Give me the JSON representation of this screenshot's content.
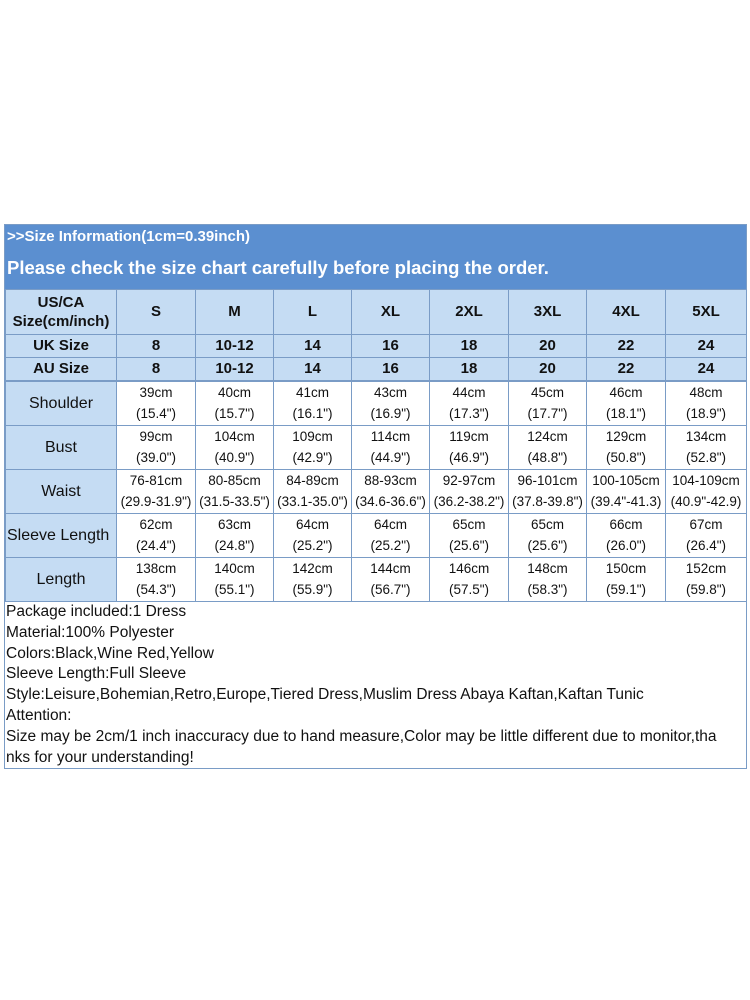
{
  "banner": {
    "line1": ">>Size Information(1cm=0.39inch)",
    "line2": "Please check the size chart carefully before placing the order."
  },
  "header": {
    "corner_label_line1": "US/CA",
    "corner_label_line2": "Size(cm/inch)",
    "sizes": [
      "S",
      "M",
      "L",
      "XL",
      "2XL",
      "3XL",
      "4XL",
      "5XL"
    ]
  },
  "uk": {
    "label": "UK Size",
    "values": [
      "8",
      "10-12",
      "14",
      "16",
      "18",
      "20",
      "22",
      "24"
    ]
  },
  "au": {
    "label": "AU Size",
    "values": [
      "8",
      "10-12",
      "14",
      "16",
      "18",
      "20",
      "22",
      "24"
    ]
  },
  "rows": [
    {
      "label": "Shoulder",
      "cm": [
        "39cm",
        "40cm",
        "41cm",
        "43cm",
        "44cm",
        "45cm",
        "46cm",
        "48cm"
      ],
      "inch": [
        "(15.4\")",
        "(15.7\")",
        "(16.1\")",
        "(16.9\")",
        "(17.3\")",
        "(17.7\")",
        "(18.1\")",
        "(18.9\")"
      ]
    },
    {
      "label": "Bust",
      "cm": [
        "99cm",
        "104cm",
        "109cm",
        "114cm",
        "119cm",
        "124cm",
        "129cm",
        "134cm"
      ],
      "inch": [
        "(39.0\")",
        "(40.9\")",
        "(42.9\")",
        "(44.9\")",
        "(46.9\")",
        "(48.8\")",
        "(50.8\")",
        "(52.8\")"
      ]
    },
    {
      "label": "Waist",
      "cm": [
        "76-81cm",
        "80-85cm",
        "84-89cm",
        "88-93cm",
        "92-97cm",
        "96-101cm",
        "100-105cm",
        "104-109cm"
      ],
      "inch": [
        "(29.9-31.9\")",
        "(31.5-33.5\")",
        "(33.1-35.0\")",
        "(34.6-36.6\")",
        "(36.2-38.2\")",
        "(37.8-39.8\")",
        "(39.4\"-41.3)",
        "(40.9\"-42.9)"
      ]
    },
    {
      "label": "Sleeve Length",
      "cm": [
        "62cm",
        "63cm",
        "64cm",
        "64cm",
        "65cm",
        "65cm",
        "66cm",
        "67cm"
      ],
      "inch": [
        "(24.4\")",
        "(24.8\")",
        "(25.2\")",
        "(25.2\")",
        "(25.6\")",
        "(25.6\")",
        "(26.0\")",
        "(26.4\")"
      ]
    },
    {
      "label": "Length",
      "cm": [
        "138cm",
        "140cm",
        "142cm",
        "144cm",
        "146cm",
        "148cm",
        "150cm",
        "152cm"
      ],
      "inch": [
        "(54.3\")",
        "(55.1\")",
        "(55.9\")",
        "(56.7\")",
        "(57.5\")",
        "(58.3\")",
        "(59.1\")",
        "(59.8\")"
      ]
    }
  ],
  "info": {
    "package": "Package included:1 Dress",
    "material": "Material:100% Polyester",
    "colors": "Colors:Black,Wine Red,Yellow",
    "sleeve": "Sleeve Length:Full Sleeve",
    "style": "Style:Leisure,Bohemian,Retro,Europe,Tiered Dress,Muslim Dress Abaya Kaftan,Kaftan Tunic",
    "attention": "Attention:",
    "note_line1": "Size may be 2cm/1 inch inaccuracy due to hand measure,Color may be little different due to monitor,tha",
    "note_line2": "nks for your understanding!"
  },
  "colors": {
    "banner": "#5b8fd0",
    "header_fill": "#c5dcf3",
    "grid": "#7a9cc6"
  }
}
